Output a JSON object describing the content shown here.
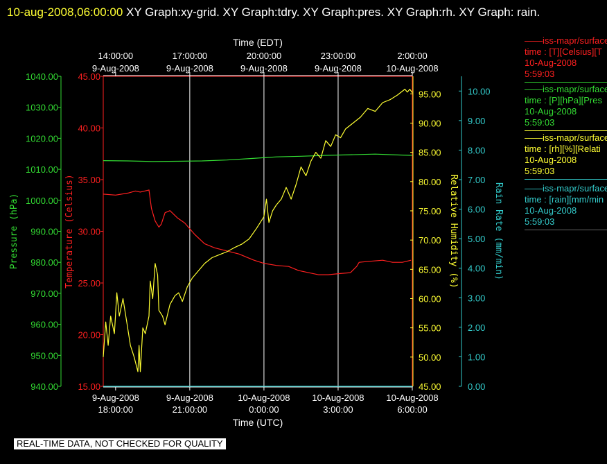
{
  "title": {
    "timestamp": "10-aug-2008,06:00:00",
    "text": " XY Graph:xy-grid.  XY Graph:tdry.  XY Graph:pres.  XY Graph:rh.  XY Graph: rain."
  },
  "colors": {
    "temperature": "#ff2020",
    "pressure": "#33dd33",
    "humidity": "#ffff33",
    "rain": "#33cccc",
    "grid": "#ffffff"
  },
  "legend": [
    {
      "header": "——iss-mapr/surface",
      "field": "time : [T][Celsius][T",
      "date": "10-Aug-2008",
      "time": "5:59:03",
      "color": "#ff2020"
    },
    {
      "header": "——iss-mapr/surface",
      "field": "time : [P][hPa][Pres",
      "date": "10-Aug-2008",
      "time": "5:59:03",
      "color": "#33dd33"
    },
    {
      "header": "——iss-mapr/surface",
      "field": "time : [rh][%][Relati",
      "date": "10-Aug-2008",
      "time": "5:59:03",
      "color": "#ffff33"
    },
    {
      "header": "——iss-mapr/surface",
      "field": "time : [rain][mm/min",
      "date": "10-Aug-2008",
      "time": "5:59:03",
      "color": "#33cccc"
    }
  ],
  "qc_note": "REAL-TIME DATA, NOT CHECKED FOR QUALITY",
  "chart_data": {
    "type": "line",
    "x_range_hours_utc": [
      17.5,
      30.0
    ],
    "x_label_bottom": "Time (UTC)",
    "x_label_top": "Time (EDT)",
    "ticks_bottom": [
      {
        "h": 18,
        "line1": "9-Aug-2008",
        "line2": "18:00:00"
      },
      {
        "h": 21,
        "line1": "9-Aug-2008",
        "line2": "21:00:00"
      },
      {
        "h": 24,
        "line1": "10-Aug-2008",
        "line2": "0:00:00"
      },
      {
        "h": 27,
        "line1": "10-Aug-2008",
        "line2": "3:00:00"
      },
      {
        "h": 30,
        "line1": "10-Aug-2008",
        "line2": "6:00:00"
      }
    ],
    "ticks_top": [
      {
        "h": 18,
        "line1": "14:00:00",
        "line2": "9-Aug-2008"
      },
      {
        "h": 21,
        "line1": "17:00:00",
        "line2": "9-Aug-2008"
      },
      {
        "h": 24,
        "line1": "20:00:00",
        "line2": "9-Aug-2008"
      },
      {
        "h": 27,
        "line1": "23:00:00",
        "line2": "9-Aug-2008"
      },
      {
        "h": 30,
        "line1": "2:00:00",
        "line2": "10-Aug-2008"
      }
    ],
    "grid_x_hours": [
      21,
      24,
      27
    ],
    "axes": [
      {
        "key": "pressure",
        "label": "Pressure (hPa)",
        "min": 940,
        "max": 1040,
        "step": 10,
        "decimals": 2,
        "side": "left-outer",
        "color": "#33dd33"
      },
      {
        "key": "temperature",
        "label": "Temperature (Celsius)",
        "min": 15,
        "max": 45,
        "step": 5,
        "decimals": 2,
        "side": "left-inner",
        "color": "#ff2020"
      },
      {
        "key": "humidity",
        "label": "Relative Humidity (%)",
        "min": 45,
        "max": 98,
        "step": 5,
        "decimals": 2,
        "side": "right-inner",
        "color": "#ffff33"
      },
      {
        "key": "rain",
        "label": "Rain Rate (mm/min)",
        "min": 0,
        "max": 10.5,
        "step": 1,
        "decimals": 2,
        "side": "right-outer",
        "color": "#33cccc"
      }
    ],
    "series": [
      {
        "name": "T",
        "axis": "temperature",
        "color": "#ff2020",
        "points": [
          [
            17.5,
            33.6
          ],
          [
            18.0,
            33.5
          ],
          [
            18.5,
            33.7
          ],
          [
            18.8,
            33.9
          ],
          [
            19.0,
            33.8
          ],
          [
            19.35,
            34.0
          ],
          [
            19.45,
            32.2
          ],
          [
            19.6,
            31.0
          ],
          [
            19.75,
            30.4
          ],
          [
            19.85,
            30.7
          ],
          [
            20.0,
            31.8
          ],
          [
            20.2,
            32.0
          ],
          [
            20.5,
            31.3
          ],
          [
            20.8,
            30.8
          ],
          [
            21.2,
            29.7
          ],
          [
            21.6,
            28.8
          ],
          [
            22.0,
            28.4
          ],
          [
            22.5,
            28.1
          ],
          [
            23.0,
            27.8
          ],
          [
            23.3,
            27.5
          ],
          [
            23.6,
            27.2
          ],
          [
            24.0,
            26.9
          ],
          [
            24.5,
            26.7
          ],
          [
            25.0,
            26.6
          ],
          [
            25.4,
            26.2
          ],
          [
            25.8,
            26.0
          ],
          [
            26.2,
            25.8
          ],
          [
            26.6,
            25.8
          ],
          [
            27.0,
            25.9
          ],
          [
            27.5,
            26.0
          ],
          [
            27.75,
            26.6
          ],
          [
            27.85,
            27.0
          ],
          [
            28.3,
            27.1
          ],
          [
            28.8,
            27.2
          ],
          [
            29.2,
            27.0
          ],
          [
            29.6,
            27.0
          ],
          [
            29.95,
            27.2
          ]
        ]
      },
      {
        "name": "P",
        "axis": "pressure",
        "color": "#33dd33",
        "points": [
          [
            17.5,
            1012.8
          ],
          [
            18.5,
            1012.7
          ],
          [
            19.5,
            1012.5
          ],
          [
            20.5,
            1012.6
          ],
          [
            21.5,
            1012.7
          ],
          [
            22.5,
            1013.0
          ],
          [
            23.5,
            1013.5
          ],
          [
            24.5,
            1014.0
          ],
          [
            25.5,
            1014.2
          ],
          [
            26.5,
            1014.5
          ],
          [
            27.5,
            1014.7
          ],
          [
            28.5,
            1014.9
          ],
          [
            29.5,
            1014.6
          ],
          [
            30.0,
            1014.5
          ]
        ]
      },
      {
        "name": "rh",
        "axis": "humidity",
        "color": "#ffff33",
        "points": [
          [
            17.5,
            50
          ],
          [
            17.6,
            56
          ],
          [
            17.7,
            52
          ],
          [
            17.8,
            57
          ],
          [
            17.95,
            54
          ],
          [
            18.05,
            61
          ],
          [
            18.15,
            57
          ],
          [
            18.3,
            60
          ],
          [
            18.45,
            56
          ],
          [
            18.6,
            52
          ],
          [
            18.75,
            50
          ],
          [
            18.9,
            47.5
          ],
          [
            18.95,
            52
          ],
          [
            19.0,
            47.5
          ],
          [
            19.1,
            55
          ],
          [
            19.2,
            54
          ],
          [
            19.35,
            57
          ],
          [
            19.4,
            63
          ],
          [
            19.5,
            60
          ],
          [
            19.6,
            66
          ],
          [
            19.7,
            64
          ],
          [
            19.75,
            58
          ],
          [
            19.9,
            57
          ],
          [
            20.0,
            55.5
          ],
          [
            20.2,
            59
          ],
          [
            20.4,
            60.5
          ],
          [
            20.55,
            61
          ],
          [
            20.7,
            59.5
          ],
          [
            20.9,
            62
          ],
          [
            21.1,
            63.5
          ],
          [
            21.3,
            64.5
          ],
          [
            21.6,
            66
          ],
          [
            21.9,
            67
          ],
          [
            22.2,
            67.5
          ],
          [
            22.5,
            68
          ],
          [
            22.8,
            68.7
          ],
          [
            23.1,
            69.3
          ],
          [
            23.4,
            70.2
          ],
          [
            23.7,
            72
          ],
          [
            24.0,
            74
          ],
          [
            24.1,
            77
          ],
          [
            24.2,
            73
          ],
          [
            24.35,
            75
          ],
          [
            24.5,
            76
          ],
          [
            24.7,
            77
          ],
          [
            24.9,
            79
          ],
          [
            25.1,
            77
          ],
          [
            25.3,
            79.5
          ],
          [
            25.5,
            82.5
          ],
          [
            25.7,
            81
          ],
          [
            25.9,
            83.5
          ],
          [
            26.1,
            85
          ],
          [
            26.3,
            84
          ],
          [
            26.5,
            87
          ],
          [
            26.7,
            86
          ],
          [
            26.9,
            88
          ],
          [
            27.1,
            87.5
          ],
          [
            27.3,
            89
          ],
          [
            27.6,
            90
          ],
          [
            27.9,
            91
          ],
          [
            28.2,
            92.5
          ],
          [
            28.5,
            92
          ],
          [
            28.8,
            93.5
          ],
          [
            29.1,
            94
          ],
          [
            29.4,
            94.8
          ],
          [
            29.7,
            95.8
          ],
          [
            29.8,
            95.3
          ],
          [
            29.9,
            95.8
          ],
          [
            30.0,
            95.2
          ]
        ]
      },
      {
        "name": "rain",
        "axis": "rain",
        "color": "#33cccc",
        "points": [
          [
            17.5,
            0.0
          ],
          [
            30.0,
            0.0
          ]
        ]
      }
    ]
  }
}
